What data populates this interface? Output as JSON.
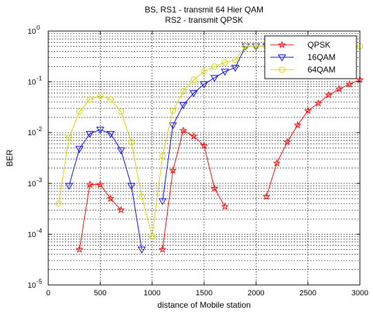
{
  "chart_data": {
    "type": "line",
    "title": [
      "BS, RS1 - transmit 64 Hier QAM",
      "RS2 - transmit QPSK"
    ],
    "xlabel": "distance of Mobile station",
    "ylabel": "BER",
    "xlim": [
      0,
      3000
    ],
    "ylim": [
      1e-05,
      1
    ],
    "yscale": "log",
    "grid": true,
    "legend_position": "top-right",
    "x_ticks": [
      {
        "value": 0,
        "label": "0"
      },
      {
        "value": 500,
        "label": "500"
      },
      {
        "value": 1000,
        "label": "1000"
      },
      {
        "value": 1500,
        "label": "1500"
      },
      {
        "value": 2000,
        "label": "2000"
      },
      {
        "value": 2500,
        "label": "2500"
      },
      {
        "value": 3000,
        "label": "3000"
      }
    ],
    "y_ticks": [
      {
        "value": 1,
        "base": "10",
        "exp": "0"
      },
      {
        "value": 0.1,
        "base": "10",
        "exp": "-1"
      },
      {
        "value": 0.01,
        "base": "10",
        "exp": "-2"
      },
      {
        "value": 0.001,
        "base": "10",
        "exp": "-3"
      },
      {
        "value": 0.0001,
        "base": "10",
        "exp": "-4"
      },
      {
        "value": 1e-05,
        "base": "10",
        "exp": "-5"
      }
    ],
    "series": [
      {
        "name": "QPSK",
        "color": "#ff0000",
        "marker": "star",
        "segments": [
          [
            [
              300,
              5e-05
            ],
            [
              400,
              0.00095
            ],
            [
              500,
              0.00095
            ],
            [
              600,
              0.0005
            ],
            [
              700,
              0.0003
            ]
          ],
          [
            [
              1100,
              5e-05
            ],
            [
              1200,
              0.0018
            ],
            [
              1300,
              0.011
            ],
            [
              1400,
              0.0085
            ],
            [
              1500,
              0.0055
            ],
            [
              1600,
              0.0008
            ],
            [
              1700,
              0.00035
            ]
          ],
          [
            [
              2100,
              0.00055
            ],
            [
              2200,
              0.0025
            ],
            [
              2300,
              0.0065
            ],
            [
              2400,
              0.014
            ],
            [
              2500,
              0.027
            ],
            [
              2600,
              0.038
            ],
            [
              2700,
              0.055
            ],
            [
              2800,
              0.072
            ],
            [
              2900,
              0.09
            ],
            [
              3000,
              0.11
            ]
          ]
        ]
      },
      {
        "name": "16QAM",
        "color": "#0000ff",
        "marker": "triangle-down",
        "segments": [
          [
            [
              200,
              0.0009
            ],
            [
              300,
              0.0048
            ],
            [
              400,
              0.0095
            ],
            [
              500,
              0.0115
            ],
            [
              600,
              0.0095
            ],
            [
              700,
              0.0045
            ],
            [
              800,
              0.0009
            ],
            [
              900,
              5e-05
            ]
          ],
          [
            [
              1100,
              0.00045
            ],
            [
              1200,
              0.014
            ],
            [
              1300,
              0.035
            ],
            [
              1400,
              0.06
            ],
            [
              1500,
              0.09
            ],
            [
              1600,
              0.12
            ],
            [
              1700,
              0.16
            ],
            [
              1800,
              0.19
            ],
            [
              1900,
              0.5
            ],
            [
              2000,
              0.5
            ],
            [
              2100,
              0.5
            ]
          ]
        ]
      },
      {
        "name": "64QAM",
        "color": "#d4d400",
        "marker": "circle",
        "segments": [
          [
            [
              100,
              0.0004
            ],
            [
              200,
              0.008
            ],
            [
              300,
              0.026
            ],
            [
              400,
              0.045
            ],
            [
              500,
              0.053
            ],
            [
              600,
              0.045
            ],
            [
              700,
              0.026
            ],
            [
              800,
              0.0065
            ],
            [
              900,
              0.00055
            ],
            [
              1000,
              9e-05
            ],
            [
              1100,
              0.0035
            ],
            [
              1200,
              0.027
            ],
            [
              1300,
              0.065
            ],
            [
              1400,
              0.11
            ],
            [
              1500,
              0.16
            ],
            [
              1600,
              0.2
            ],
            [
              1700,
              0.24
            ],
            [
              1800,
              0.27
            ],
            [
              1900,
              0.5
            ],
            [
              2000,
              0.5
            ],
            [
              2100,
              0.5
            ],
            [
              2200,
              0.5
            ],
            [
              2300,
              0.5
            ],
            [
              2400,
              0.5
            ],
            [
              2500,
              0.5
            ],
            [
              2600,
              0.5
            ],
            [
              2700,
              0.5
            ],
            [
              2800,
              0.5
            ],
            [
              2900,
              0.5
            ],
            [
              3000,
              0.5
            ]
          ]
        ]
      }
    ]
  }
}
